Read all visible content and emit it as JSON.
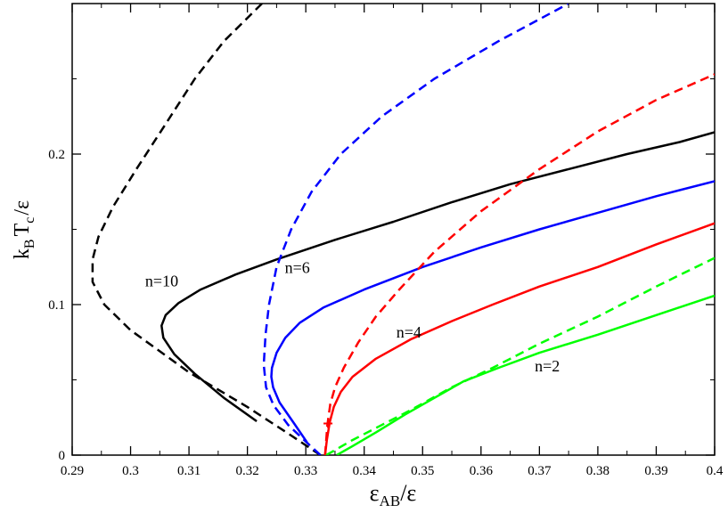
{
  "chart_data": {
    "type": "line",
    "xlabel": {
      "main": "ε",
      "sub": "AB",
      "tail": "/ε"
    },
    "ylabel": {
      "k": "k",
      "k_sub": "B",
      "t": "T",
      "t_sub": "c",
      "tail": "/ε"
    },
    "xlim": [
      0.29,
      0.4
    ],
    "ylim": [
      0,
      0.3
    ],
    "x_ticks": [
      0.29,
      0.3,
      0.31,
      0.32,
      0.33,
      0.34,
      0.35,
      0.36,
      0.37,
      0.38,
      0.39,
      0.4
    ],
    "x_tick_labels": [
      "0.29",
      "0.3",
      "0.31",
      "0.32",
      "0.33",
      "0.34",
      "0.35",
      "0.36",
      "0.37",
      "0.38",
      "0.39",
      "0.4"
    ],
    "y_ticks": [
      0,
      0.1,
      0.2
    ],
    "y_tick_labels": [
      "0",
      "0.1",
      "0.2"
    ],
    "grid": false,
    "legend": "none",
    "series": [
      {
        "name": "n=10",
        "color": "#000000",
        "style": "solid",
        "points": [
          [
            0.3216,
            0.0225
          ],
          [
            0.316,
            0.038
          ],
          [
            0.311,
            0.054
          ],
          [
            0.3075,
            0.067
          ],
          [
            0.3056,
            0.078
          ],
          [
            0.3053,
            0.086
          ],
          [
            0.306,
            0.093
          ],
          [
            0.3082,
            0.101
          ],
          [
            0.312,
            0.11
          ],
          [
            0.318,
            0.12
          ],
          [
            0.325,
            0.13
          ],
          [
            0.335,
            0.143
          ],
          [
            0.345,
            0.155
          ],
          [
            0.355,
            0.168
          ],
          [
            0.365,
            0.18
          ],
          [
            0.375,
            0.19
          ],
          [
            0.385,
            0.2
          ],
          [
            0.394,
            0.208
          ],
          [
            0.4,
            0.2145
          ]
        ]
      },
      {
        "name": "",
        "color": "#000000",
        "style": "dashed",
        "points": [
          [
            0.3325,
            0.0
          ],
          [
            0.3275,
            0.013
          ],
          [
            0.32,
            0.032
          ],
          [
            0.31,
            0.055
          ],
          [
            0.3,
            0.083
          ],
          [
            0.2955,
            0.1
          ],
          [
            0.2935,
            0.115
          ],
          [
            0.2935,
            0.13
          ],
          [
            0.2945,
            0.145
          ],
          [
            0.297,
            0.165
          ],
          [
            0.301,
            0.19
          ],
          [
            0.306,
            0.22
          ],
          [
            0.311,
            0.25
          ],
          [
            0.316,
            0.275
          ],
          [
            0.3225,
            0.3
          ]
        ]
      },
      {
        "name": "n=6",
        "color": "#0000ff",
        "style": "solid",
        "points": [
          [
            0.3302,
            0.0085
          ],
          [
            0.328,
            0.021
          ],
          [
            0.3255,
            0.035
          ],
          [
            0.3244,
            0.045
          ],
          [
            0.3241,
            0.052
          ],
          [
            0.3242,
            0.058
          ],
          [
            0.325,
            0.068
          ],
          [
            0.3265,
            0.078
          ],
          [
            0.329,
            0.088
          ],
          [
            0.333,
            0.098
          ],
          [
            0.34,
            0.11
          ],
          [
            0.35,
            0.125
          ],
          [
            0.36,
            0.138
          ],
          [
            0.37,
            0.15
          ],
          [
            0.38,
            0.161
          ],
          [
            0.39,
            0.172
          ],
          [
            0.4,
            0.182
          ]
        ]
      },
      {
        "name": "",
        "color": "#0000ff",
        "style": "dashed",
        "points": [
          [
            0.3325,
            0.0
          ],
          [
            0.33,
            0.009
          ],
          [
            0.327,
            0.02
          ],
          [
            0.3245,
            0.033
          ],
          [
            0.3232,
            0.045
          ],
          [
            0.3228,
            0.06
          ],
          [
            0.3231,
            0.08
          ],
          [
            0.3237,
            0.1
          ],
          [
            0.325,
            0.125
          ],
          [
            0.3275,
            0.15
          ],
          [
            0.331,
            0.175
          ],
          [
            0.336,
            0.2
          ],
          [
            0.343,
            0.225
          ],
          [
            0.352,
            0.25
          ],
          [
            0.363,
            0.275
          ],
          [
            0.375,
            0.3
          ]
        ]
      },
      {
        "name": "n=4",
        "color": "#ff0000",
        "style": "solid",
        "points": [
          [
            0.3333,
            0.0
          ],
          [
            0.3336,
            0.01
          ],
          [
            0.3341,
            0.022
          ],
          [
            0.3348,
            0.032
          ],
          [
            0.336,
            0.042
          ],
          [
            0.338,
            0.052
          ],
          [
            0.342,
            0.064
          ],
          [
            0.348,
            0.077
          ],
          [
            0.355,
            0.089
          ],
          [
            0.362,
            0.1
          ],
          [
            0.37,
            0.112
          ],
          [
            0.38,
            0.125
          ],
          [
            0.39,
            0.14
          ],
          [
            0.4,
            0.154
          ]
        ]
      },
      {
        "name": "",
        "color": "#ff0000",
        "style": "dashed",
        "points": [
          [
            0.3333,
            0.0
          ],
          [
            0.3337,
            0.02
          ],
          [
            0.3342,
            0.034
          ],
          [
            0.335,
            0.045
          ],
          [
            0.3365,
            0.058
          ],
          [
            0.339,
            0.075
          ],
          [
            0.342,
            0.092
          ],
          [
            0.346,
            0.11
          ],
          [
            0.352,
            0.135
          ],
          [
            0.36,
            0.162
          ],
          [
            0.37,
            0.19
          ],
          [
            0.38,
            0.215
          ],
          [
            0.39,
            0.236
          ],
          [
            0.4,
            0.253
          ]
        ]
      },
      {
        "name": "n=2",
        "color": "#00ff00",
        "style": "solid",
        "points": [
          [
            0.3353,
            0.0
          ],
          [
            0.338,
            0.006
          ],
          [
            0.342,
            0.015
          ],
          [
            0.347,
            0.027
          ],
          [
            0.352,
            0.038
          ],
          [
            0.357,
            0.049
          ],
          [
            0.363,
            0.058
          ],
          [
            0.37,
            0.068
          ],
          [
            0.38,
            0.08
          ],
          [
            0.39,
            0.093
          ],
          [
            0.4,
            0.106
          ]
        ]
      },
      {
        "name": "",
        "color": "#00ff00",
        "style": "dashed",
        "points": [
          [
            0.3335,
            0.0
          ],
          [
            0.338,
            0.01
          ],
          [
            0.343,
            0.02
          ],
          [
            0.348,
            0.03
          ],
          [
            0.355,
            0.045
          ],
          [
            0.362,
            0.058
          ],
          [
            0.37,
            0.074
          ],
          [
            0.38,
            0.092
          ],
          [
            0.39,
            0.112
          ],
          [
            0.4,
            0.131
          ]
        ]
      }
    ],
    "markers": [
      {
        "x": 0.3338,
        "y": 0.021,
        "color": "#ff0000",
        "symbol": "+"
      }
    ],
    "annotations": [
      {
        "text": "n=10",
        "x": 0.3025,
        "y": 0.112
      },
      {
        "text": "n=6",
        "x": 0.3264,
        "y": 0.121
      },
      {
        "text": "n=4",
        "x": 0.3455,
        "y": 0.078
      },
      {
        "text": "n=2",
        "x": 0.3692,
        "y": 0.0555
      }
    ]
  }
}
